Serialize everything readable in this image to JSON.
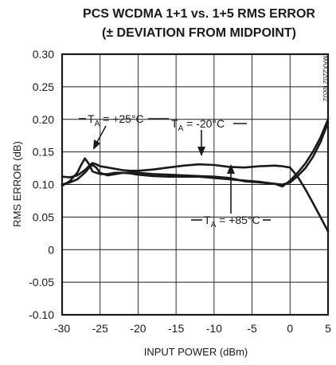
{
  "chart_data": {
    "type": "line",
    "title_line1": "PCS WCDMA 1+1 vs. 1+5 RMS ERROR",
    "title_line2": "(± DEVIATION FROM MIDPOINT)",
    "xlabel": "INPUT POWER (dBm)",
    "ylabel": "RMS ERROR (dB)",
    "xlim": [
      -30,
      5
    ],
    "ylim": [
      -0.1,
      0.3
    ],
    "x_ticks": [
      -30,
      -25,
      -20,
      -15,
      -10,
      -5,
      0,
      5
    ],
    "x_tick_labels": [
      "-30",
      "-25",
      "-20",
      "-15",
      "-10",
      "-5",
      "0",
      "5"
    ],
    "y_ticks": [
      -0.1,
      -0.05,
      0,
      0.05,
      0.1,
      0.15,
      0.2,
      0.25,
      0.3
    ],
    "y_tick_labels": [
      "-0.10",
      "-0.05",
      "0",
      "0.05",
      "0.10",
      "0.15",
      "0.20",
      "0.25",
      "0.30"
    ],
    "grid": true,
    "watermark": "MAX2202 toc02",
    "series": [
      {
        "name": "TA = +25°C",
        "x": [
          -30,
          -29,
          -28,
          -27.5,
          -27,
          -26.5,
          -26,
          -25,
          -24,
          -23,
          -22,
          -21,
          -20,
          -18,
          -16,
          -14,
          -12,
          -10,
          -8,
          -6,
          -4,
          -2,
          -1,
          0,
          1,
          2,
          3,
          4,
          5
        ],
        "y": [
          0.098,
          0.105,
          0.118,
          0.13,
          0.14,
          0.132,
          0.12,
          0.116,
          0.116,
          0.118,
          0.118,
          0.117,
          0.115,
          0.113,
          0.112,
          0.112,
          0.112,
          0.11,
          0.108,
          0.106,
          0.104,
          0.101,
          0.1,
          0.103,
          0.113,
          0.125,
          0.142,
          0.165,
          0.195
        ]
      },
      {
        "name": "TA = -20°C",
        "x": [
          -30,
          -29,
          -28,
          -27,
          -26.5,
          -26,
          -25.5,
          -25,
          -24,
          -23,
          -22,
          -21,
          -20,
          -18,
          -16,
          -14,
          -12,
          -10,
          -8,
          -6,
          -4,
          -2,
          -1,
          0,
          1,
          2,
          3,
          4,
          5
        ],
        "y": [
          0.112,
          0.111,
          0.114,
          0.122,
          0.128,
          0.133,
          0.131,
          0.128,
          0.126,
          0.124,
          0.122,
          0.121,
          0.121,
          0.123,
          0.126,
          0.129,
          0.131,
          0.13,
          0.127,
          0.126,
          0.128,
          0.129,
          0.128,
          0.126,
          0.112,
          0.093,
          0.072,
          0.05,
          0.028
        ]
      },
      {
        "name": "TA = +85°C",
        "x": [
          -30,
          -29,
          -28,
          -27,
          -26.5,
          -26,
          -25.5,
          -25,
          -24,
          -22,
          -20,
          -18,
          -16,
          -14,
          -12,
          -10,
          -8,
          -6,
          -4,
          -2,
          -1,
          0,
          1,
          2,
          3,
          4,
          5
        ],
        "y": [
          0.1,
          0.103,
          0.108,
          0.118,
          0.125,
          0.13,
          0.126,
          0.118,
          0.114,
          0.118,
          0.118,
          0.116,
          0.115,
          0.114,
          0.113,
          0.112,
          0.11,
          0.105,
          0.103,
          0.101,
          0.097,
          0.106,
          0.118,
          0.132,
          0.15,
          0.172,
          0.2
        ]
      }
    ],
    "annotations": [
      {
        "main": "T",
        "sub": "A",
        "rest": " = +25°C"
      },
      {
        "main": "T",
        "sub": "A",
        "rest": " = -20°C"
      },
      {
        "main": "T",
        "sub": "A",
        "rest": " = +85°C"
      }
    ]
  }
}
